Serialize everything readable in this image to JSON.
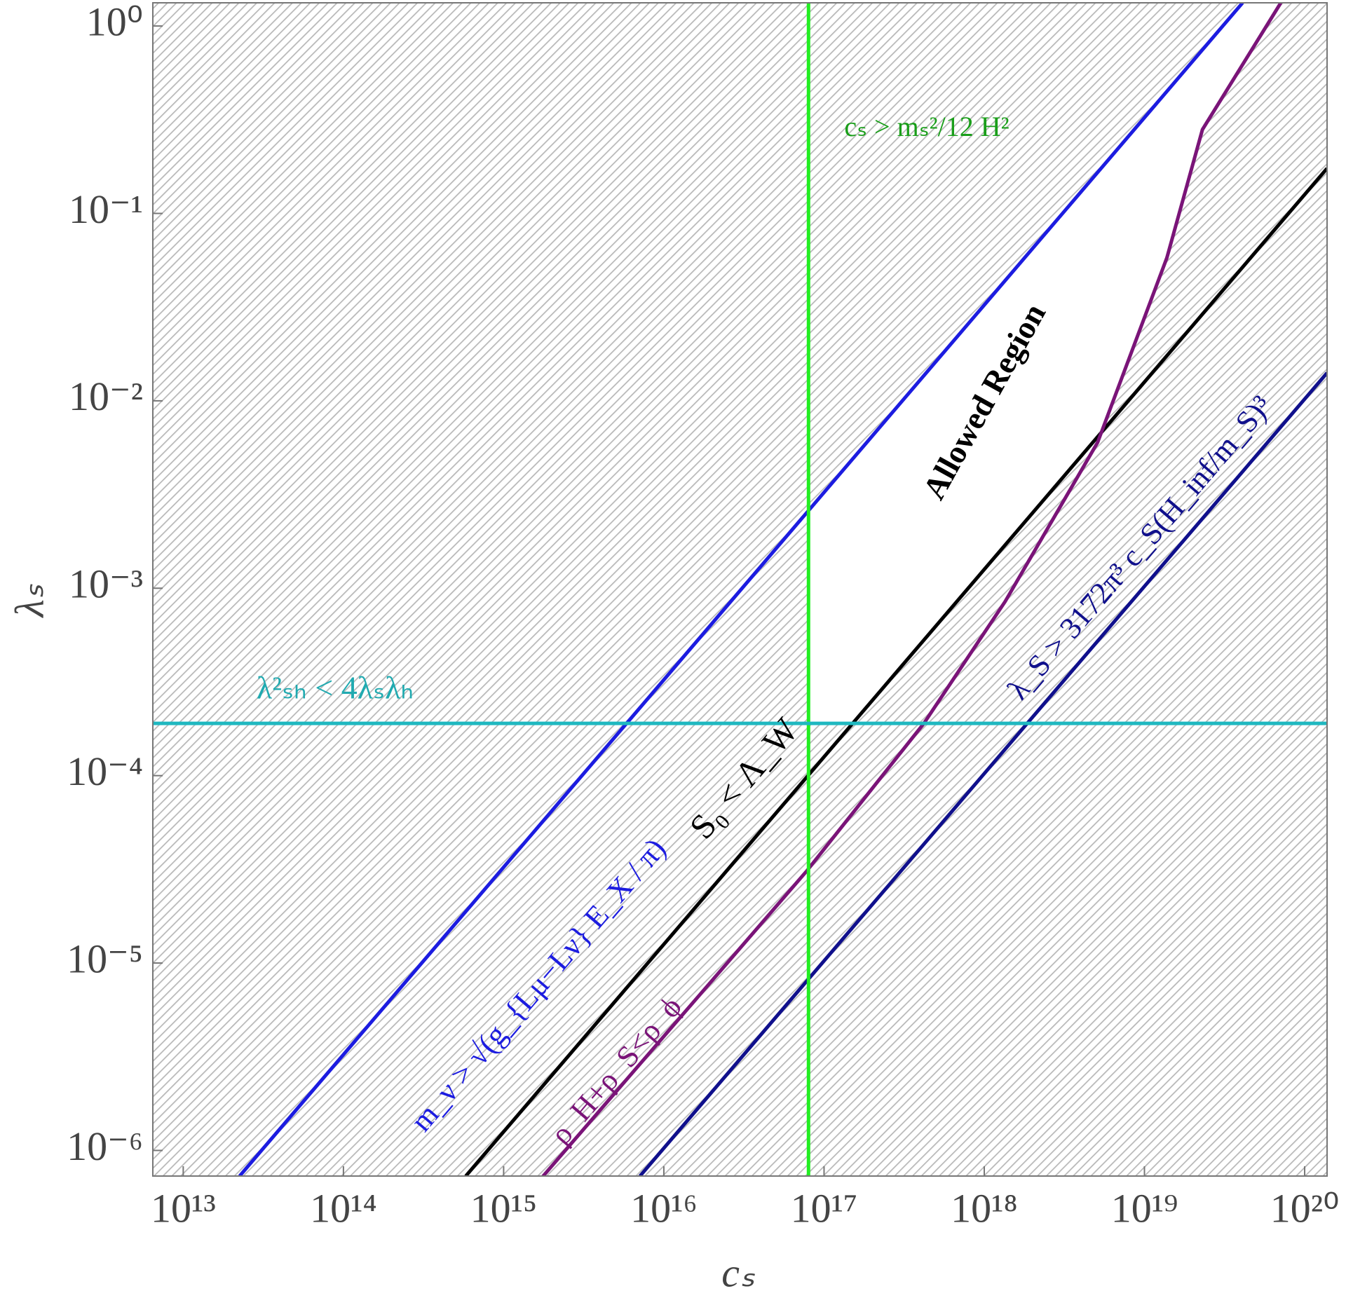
{
  "chart_data": {
    "type": "line",
    "x_label": "cₛ",
    "y_label": "λₛ",
    "log_x": true,
    "log_y": true,
    "xlim": [
      6460000000000.0,
      1.38e+20
    ],
    "ylim": [
      7.3e-07,
      1.33
    ],
    "xticks": [
      {
        "value": 10000000000000.0,
        "label": "10¹³"
      },
      {
        "value": 100000000000000.0,
        "label": "10¹⁴"
      },
      {
        "value": 1000000000000000.0,
        "label": "10¹⁵"
      },
      {
        "value": 1e+16,
        "label": "10¹⁶"
      },
      {
        "value": 1e+17,
        "label": "10¹⁷"
      },
      {
        "value": 1e+18,
        "label": "10¹⁸"
      },
      {
        "value": 1e+19,
        "label": "10¹⁹"
      },
      {
        "value": 1e+20,
        "label": "10²⁰"
      }
    ],
    "yticks": [
      {
        "value": 1e-06,
        "label": "10⁻⁶"
      },
      {
        "value": 1e-05,
        "label": "10⁻⁵"
      },
      {
        "value": 0.0001,
        "label": "10⁻⁴"
      },
      {
        "value": 0.001,
        "label": "10⁻³"
      },
      {
        "value": 0.01,
        "label": "10⁻²"
      },
      {
        "value": 0.1,
        "label": "10⁻¹"
      },
      {
        "value": 1,
        "label": "10⁰"
      }
    ],
    "series": [
      {
        "color": "#1c1ce0",
        "x": [
          22500000000000.0,
          4.1e+19
        ],
        "values": [
          7.3e-07,
          1.33
        ]
      },
      {
        "color": "#000000",
        "x": [
          580000000000000.0,
          1.38e+20
        ],
        "values": [
          7.3e-07,
          0.174
        ]
      },
      {
        "color": "#7a1478",
        "x": [
          1740000000000000.0,
          7.8e+16,
          4.2e+17,
          1.35e+18,
          5.1e+18,
          1.38e+19,
          2.3e+19,
          7.1e+19
        ],
        "values": [
          7.2e-07,
          3.1e-05,
          0.00019,
          0.00085,
          0.006,
          0.058,
          0.28,
          1.33
        ]
      },
      {
        "color": "#10108c",
        "x": [
          7100000000000000.0,
          1.38e+20
        ],
        "values": [
          7.3e-07,
          0.0141
        ]
      },
      {
        "color": "#22ee22",
        "x": [
          8e+16,
          8e+16
        ],
        "values": [
          7.3e-07,
          1.33
        ]
      },
      {
        "color": "#1fb8c0",
        "x": [
          6460000000000.0,
          1.38e+20
        ],
        "values": [
          0.00019,
          0.00019
        ]
      }
    ],
    "annotations": [
      {
        "text": "cₛ > mₛ²/12 H²",
        "color": "#1a9e1a"
      },
      {
        "text": "λ²ₛₕ < 4λₛλₕ",
        "color": "#20aab0"
      },
      {
        "text": "Allowed Region",
        "color": "#000000"
      },
      {
        "text": "S₀ < Λ_W",
        "color": "#000000"
      },
      {
        "text": "ρ_H+ρ_S<ρ_ϕ",
        "color": "#7a1478"
      },
      {
        "text": "λ_S > 3172π³ c_S(H_inf/m_S)³",
        "color": "#10108c"
      },
      {
        "text": "m_ν > √(g_{Lμ−Lν} E_X / π)",
        "color": "#1c1ce0"
      }
    ]
  }
}
